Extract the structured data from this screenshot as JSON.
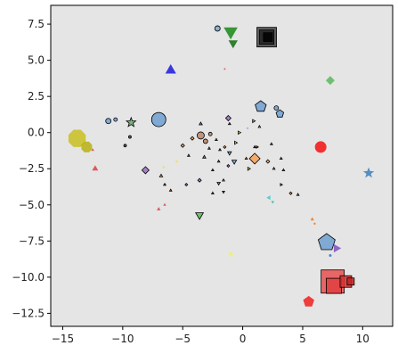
{
  "chart_data": {
    "type": "scatter",
    "title": "",
    "xlabel": "",
    "ylabel": "",
    "xlim": [
      -16,
      12.5
    ],
    "ylim": [
      -13.4,
      8.8
    ],
    "x_ticks": [
      -15,
      -10,
      -5,
      0,
      5,
      10
    ],
    "x_tick_labels": [
      "−15",
      "−10",
      "−5",
      "0",
      "5",
      "10"
    ],
    "y_ticks": [
      7.5,
      5.0,
      2.5,
      0.0,
      -2.5,
      -5.0,
      -7.5,
      -10.0,
      -12.5
    ],
    "y_tick_labels": [
      "7.5",
      "5.0",
      "2.5",
      "0.0",
      "−2.5",
      "−5.0",
      "−7.5",
      "−10.0",
      "−12.5"
    ],
    "grid": false,
    "background_color": "#e5e5e5",
    "points": [
      {
        "x": 2.0,
        "y": 6.6,
        "shape": "square",
        "size": 22,
        "color": "#444444",
        "edge": true
      },
      {
        "x": 2.0,
        "y": 6.6,
        "shape": "square",
        "size": 16,
        "color": "#222222",
        "edge": true
      },
      {
        "x": 2.1,
        "y": 6.6,
        "shape": "square",
        "size": 10,
        "color": "#000000",
        "edge": true
      },
      {
        "x": -1.0,
        "y": 7.0,
        "shape": "triangle-down",
        "size": 18,
        "color": "#168a16",
        "edge": false
      },
      {
        "x": -0.8,
        "y": 6.2,
        "shape": "triangle-down",
        "size": 12,
        "color": "#0f6f0f",
        "edge": false
      },
      {
        "x": -2.1,
        "y": 7.2,
        "shape": "circle",
        "size": 6,
        "color": "#7aa6d1",
        "edge": true
      },
      {
        "x": -6.0,
        "y": 4.3,
        "shape": "triangle-up",
        "size": 14,
        "color": "#1a1adc",
        "edge": false
      },
      {
        "x": -1.5,
        "y": 4.4,
        "shape": "triangle-up",
        "size": 3,
        "color": "#d44a4a",
        "edge": false
      },
      {
        "x": 1.5,
        "y": 1.8,
        "shape": "pentagon",
        "size": 13,
        "color": "#6f9fd0",
        "edge": true
      },
      {
        "x": 3.1,
        "y": 1.3,
        "shape": "pentagon",
        "size": 9,
        "color": "#6f9fd0",
        "edge": true
      },
      {
        "x": 2.8,
        "y": 1.7,
        "shape": "circle",
        "size": 5,
        "color": "#6f9fd0",
        "edge": true
      },
      {
        "x": 7.3,
        "y": 3.6,
        "shape": "diamond",
        "size": 10,
        "color": "#5cb85c",
        "edge": false
      },
      {
        "x": -7.0,
        "y": 0.9,
        "shape": "circle",
        "size": 16,
        "color": "#6f9fd0",
        "edge": true
      },
      {
        "x": -9.3,
        "y": 0.7,
        "shape": "star",
        "size": 11,
        "color": "#6aaa6a",
        "edge": true
      },
      {
        "x": -11.2,
        "y": 0.8,
        "shape": "circle",
        "size": 6,
        "color": "#6f9fd0",
        "edge": true
      },
      {
        "x": -10.6,
        "y": 0.9,
        "shape": "circle",
        "size": 4,
        "color": "#6f9fd0",
        "edge": true
      },
      {
        "x": -13.8,
        "y": -0.4,
        "shape": "octagon",
        "size": 21,
        "color": "#c8c020",
        "edge": false
      },
      {
        "x": -13.0,
        "y": -1.0,
        "shape": "octagon",
        "size": 13,
        "color": "#b7b014",
        "edge": false
      },
      {
        "x": -12.3,
        "y": -2.5,
        "shape": "triangle-up",
        "size": 8,
        "color": "#d84343",
        "edge": false
      },
      {
        "x": -9.8,
        "y": -0.9,
        "shape": "circle",
        "size": 3,
        "color": "#2f5a2f",
        "edge": true
      },
      {
        "x": -9.4,
        "y": -0.3,
        "shape": "circle",
        "size": 3,
        "color": "#2f5a2f",
        "edge": true
      },
      {
        "x": -12.5,
        "y": -1.2,
        "shape": "triangle-up",
        "size": 4,
        "color": "#d44a4a",
        "edge": false
      },
      {
        "x": -3.5,
        "y": -0.2,
        "shape": "circle",
        "size": 8,
        "color": "#b8876a",
        "edge": true
      },
      {
        "x": -3.1,
        "y": -0.6,
        "shape": "circle",
        "size": 5,
        "color": "#b8876a",
        "edge": true
      },
      {
        "x": -2.7,
        "y": -0.1,
        "shape": "circle",
        "size": 4,
        "color": "#b8876a",
        "edge": true
      },
      {
        "x": -3.5,
        "y": 0.6,
        "shape": "triangle-up",
        "size": 4,
        "color": "#9a70c0",
        "edge": true
      },
      {
        "x": -4.2,
        "y": -0.4,
        "shape": "diamond",
        "size": 4,
        "color": "#f5a055",
        "edge": true
      },
      {
        "x": -5.0,
        "y": -0.9,
        "shape": "diamond",
        "size": 4,
        "color": "#f5a055",
        "edge": true
      },
      {
        "x": -4.5,
        "y": -1.6,
        "shape": "triangle-up",
        "size": 3,
        "color": "#9a70c0",
        "edge": true
      },
      {
        "x": -3.2,
        "y": -1.7,
        "shape": "triangle-up",
        "size": 4,
        "color": "#9a70c0",
        "edge": true
      },
      {
        "x": -2.8,
        "y": -1.1,
        "shape": "triangle-up",
        "size": 3,
        "color": "#d2b48c",
        "edge": true
      },
      {
        "x": -2.2,
        "y": -0.5,
        "shape": "triangle-up",
        "size": 3,
        "color": "#d2b48c",
        "edge": true
      },
      {
        "x": -1.5,
        "y": -1.0,
        "shape": "diamond",
        "size": 3,
        "color": "#f5a055",
        "edge": true
      },
      {
        "x": -1.2,
        "y": 1.0,
        "shape": "diamond",
        "size": 6,
        "color": "#9a70c0",
        "edge": true
      },
      {
        "x": -1.1,
        "y": 0.6,
        "shape": "triangle-up",
        "size": 3,
        "color": "#f5a055",
        "edge": true
      },
      {
        "x": -0.3,
        "y": 0.0,
        "shape": "triangle-right",
        "size": 4,
        "color": "#f0e050",
        "edge": true
      },
      {
        "x": 0.4,
        "y": 0.3,
        "shape": "triangle-down",
        "size": 3,
        "color": "#6f9fd0",
        "edge": false
      },
      {
        "x": 0.9,
        "y": 0.8,
        "shape": "triangle-right",
        "size": 4,
        "color": "#f5a055",
        "edge": true
      },
      {
        "x": 1.4,
        "y": 0.4,
        "shape": "triangle-up",
        "size": 3,
        "color": "#f0e050",
        "edge": true
      },
      {
        "x": -0.6,
        "y": -0.7,
        "shape": "triangle-right",
        "size": 4,
        "color": "#f0e050",
        "edge": true
      },
      {
        "x": -1.1,
        "y": -1.4,
        "shape": "triangle-down",
        "size": 5,
        "color": "#6f9fd0",
        "edge": true
      },
      {
        "x": -1.9,
        "y": -1.2,
        "shape": "triangle-up",
        "size": 3,
        "color": "#b8876a",
        "edge": true
      },
      {
        "x": -0.7,
        "y": -2.0,
        "shape": "triangle-down",
        "size": 6,
        "color": "#6f9fd0",
        "edge": true
      },
      {
        "x": 0.3,
        "y": -1.8,
        "shape": "triangle-up",
        "size": 3,
        "color": "#d2b48c",
        "edge": true
      },
      {
        "x": -2.0,
        "y": -2.0,
        "shape": "triangle-up",
        "size": 3,
        "color": "#9a70c0",
        "edge": true
      },
      {
        "x": -1.2,
        "y": -2.3,
        "shape": "diamond",
        "size": 3,
        "color": "#9a70c0",
        "edge": true
      },
      {
        "x": -2.5,
        "y": -2.6,
        "shape": "triangle-up",
        "size": 3,
        "color": "#9a70c0",
        "edge": true
      },
      {
        "x": 0.5,
        "y": -2.5,
        "shape": "triangle-right",
        "size": 4,
        "color": "#f0e050",
        "edge": true
      },
      {
        "x": 1.0,
        "y": -1.0,
        "shape": "triangle-up",
        "size": 3,
        "color": "#9a70c0",
        "edge": true
      },
      {
        "x": 1.2,
        "y": -1.0,
        "shape": "triangle-right",
        "size": 3,
        "color": "#f5a055",
        "edge": true
      },
      {
        "x": 2.4,
        "y": -0.8,
        "shape": "triangle-up",
        "size": 3,
        "color": "#9a70c0",
        "edge": true
      },
      {
        "x": 2.1,
        "y": -2.0,
        "shape": "diamond",
        "size": 4,
        "color": "#f5a055",
        "edge": true
      },
      {
        "x": 2.6,
        "y": -2.5,
        "shape": "triangle-up",
        "size": 3,
        "color": "#d2b48c",
        "edge": true
      },
      {
        "x": 3.2,
        "y": -1.8,
        "shape": "triangle-up",
        "size": 3,
        "color": "#9a70c0",
        "edge": true
      },
      {
        "x": 3.4,
        "y": -2.6,
        "shape": "triangle-up",
        "size": 3,
        "color": "#9a70c0",
        "edge": true
      },
      {
        "x": 1.0,
        "y": -1.8,
        "shape": "diamond",
        "size": 12,
        "color": "#f5a055",
        "edge": true
      },
      {
        "x": 3.2,
        "y": -3.6,
        "shape": "triangle-right",
        "size": 3,
        "color": "#f5a055",
        "edge": true
      },
      {
        "x": 4.0,
        "y": -4.2,
        "shape": "diamond",
        "size": 3,
        "color": "#f5a055",
        "edge": true
      },
      {
        "x": 4.6,
        "y": -4.3,
        "shape": "triangle-up",
        "size": 3,
        "color": "#d2b48c",
        "edge": true
      },
      {
        "x": 2.2,
        "y": -4.5,
        "shape": "triangle-left",
        "size": 6,
        "color": "#40c8c8",
        "edge": false
      },
      {
        "x": 2.5,
        "y": -4.8,
        "shape": "triangle-down",
        "size": 4,
        "color": "#30b0b0",
        "edge": false
      },
      {
        "x": -3.6,
        "y": -3.3,
        "shape": "diamond",
        "size": 4,
        "color": "#9a70c0",
        "edge": true
      },
      {
        "x": -4.7,
        "y": -3.6,
        "shape": "diamond",
        "size": 3,
        "color": "#9a70c0",
        "edge": true
      },
      {
        "x": -2.5,
        "y": -4.2,
        "shape": "triangle-up",
        "size": 3,
        "color": "#9a70c0",
        "edge": true
      },
      {
        "x": -1.6,
        "y": -4.1,
        "shape": "triangle-down",
        "size": 3,
        "color": "#9a70c0",
        "edge": true
      },
      {
        "x": -1.6,
        "y": -3.3,
        "shape": "triangle-up",
        "size": 3,
        "color": "#f0e050",
        "edge": true
      },
      {
        "x": -2.0,
        "y": -3.5,
        "shape": "triangle-down",
        "size": 4,
        "color": "#9a70c0",
        "edge": true
      },
      {
        "x": -3.6,
        "y": -5.7,
        "shape": "triangle-down",
        "size": 10,
        "color": "#5cb85c",
        "edge": true
      },
      {
        "x": -5.5,
        "y": -2.0,
        "shape": "triangle-right",
        "size": 4,
        "color": "#f0e050",
        "edge": false
      },
      {
        "x": -6.6,
        "y": -2.4,
        "shape": "triangle-right",
        "size": 4,
        "color": "#f0e050",
        "edge": false
      },
      {
        "x": -8.1,
        "y": -2.6,
        "shape": "diamond",
        "size": 8,
        "color": "#9a70c0",
        "edge": true
      },
      {
        "x": -6.8,
        "y": -3.0,
        "shape": "triangle-up",
        "size": 4,
        "color": "#d2b48c",
        "edge": true
      },
      {
        "x": -6.5,
        "y": -3.6,
        "shape": "triangle-up",
        "size": 3,
        "color": "#b86a40",
        "edge": true
      },
      {
        "x": -6.0,
        "y": -4.0,
        "shape": "triangle-up",
        "size": 3,
        "color": "#b86a40",
        "edge": true
      },
      {
        "x": -7.0,
        "y": -5.3,
        "shape": "triangle-up",
        "size": 5,
        "color": "#d84343",
        "edge": false
      },
      {
        "x": -6.5,
        "y": -5.0,
        "shape": "triangle-up",
        "size": 4,
        "color": "#d84343",
        "edge": false
      },
      {
        "x": 6.5,
        "y": -1.0,
        "shape": "circle",
        "size": 13,
        "color": "#f41010",
        "edge": false
      },
      {
        "x": 10.5,
        "y": -2.8,
        "shape": "star",
        "size": 13,
        "color": "#3a7fc0",
        "edge": false
      },
      {
        "x": 5.8,
        "y": -6.0,
        "shape": "triangle-up",
        "size": 5,
        "color": "#f07820",
        "edge": false
      },
      {
        "x": 6.0,
        "y": -6.3,
        "shape": "diamond",
        "size": 3,
        "color": "#f07820",
        "edge": false
      },
      {
        "x": 7.0,
        "y": -7.6,
        "shape": "pentagon",
        "size": 20,
        "color": "#6f9fd0",
        "edge": true
      },
      {
        "x": 7.8,
        "y": -8.0,
        "shape": "triangle-right",
        "size": 11,
        "color": "#8050c0",
        "edge": false
      },
      {
        "x": 7.3,
        "y": -8.5,
        "shape": "circle",
        "size": 3,
        "color": "#3a6fc0",
        "edge": false
      },
      {
        "x": 7.5,
        "y": -10.3,
        "shape": "square",
        "size": 26,
        "color": "#e85050",
        "edge": true
      },
      {
        "x": 7.6,
        "y": -10.6,
        "shape": "square",
        "size": 17,
        "color": "#e04040",
        "edge": true
      },
      {
        "x": 8.6,
        "y": -10.3,
        "shape": "square",
        "size": 13,
        "color": "#d83030",
        "edge": true
      },
      {
        "x": 9.0,
        "y": -10.3,
        "shape": "square",
        "size": 8,
        "color": "#c82020",
        "edge": true
      },
      {
        "x": 5.5,
        "y": -11.7,
        "shape": "pentagon",
        "size": 13,
        "color": "#ee2020",
        "edge": false
      },
      {
        "x": -1.0,
        "y": -8.4,
        "shape": "diamond",
        "size": 6,
        "color": "#f0f070",
        "edge": false
      }
    ]
  }
}
